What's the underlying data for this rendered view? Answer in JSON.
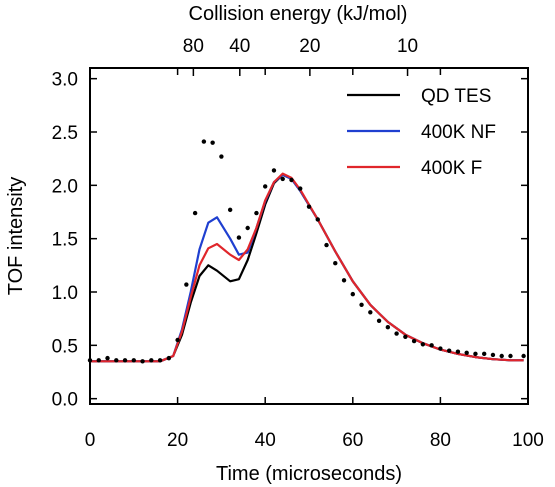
{
  "chart_data": {
    "type": "line",
    "xlabel": "Time (microseconds)",
    "ylabel": "TOF intensity",
    "top_axis_label": "Collision energy (kJ/mol)",
    "xlim": [
      0,
      100
    ],
    "ylim": [
      -0.05,
      3.1
    ],
    "x_ticks": [
      0,
      20,
      40,
      60,
      80,
      100
    ],
    "y_ticks": [
      0.0,
      0.5,
      1.0,
      1.5,
      2.0,
      2.5,
      3.0
    ],
    "y_tick_labels": [
      "0.0",
      "0.5",
      "1.0",
      "1.5",
      "2.0",
      "2.5",
      "3.0"
    ],
    "top_ticks": [
      {
        "label": "80",
        "time": 23.6
      },
      {
        "label": "40",
        "time": 34.2
      },
      {
        "label": "20",
        "time": 50.2
      },
      {
        "label": "10",
        "time": 72.5
      }
    ],
    "legend_position": "top-right",
    "series": [
      {
        "name": "QD TES",
        "color": "#000000",
        "points": [
          [
            0,
            0.35
          ],
          [
            16,
            0.35
          ],
          [
            19,
            0.4
          ],
          [
            21,
            0.6
          ],
          [
            23,
            0.9
          ],
          [
            25,
            1.15
          ],
          [
            27,
            1.25
          ],
          [
            29,
            1.2
          ],
          [
            32,
            1.1
          ],
          [
            34,
            1.12
          ],
          [
            36,
            1.3
          ],
          [
            38,
            1.55
          ],
          [
            40,
            1.82
          ],
          [
            42,
            2.02
          ],
          [
            44,
            2.1
          ],
          [
            46,
            2.06
          ],
          [
            48,
            1.95
          ],
          [
            52,
            1.68
          ],
          [
            56,
            1.38
          ],
          [
            60,
            1.1
          ],
          [
            64,
            0.88
          ],
          [
            68,
            0.72
          ],
          [
            72,
            0.6
          ],
          [
            76,
            0.52
          ],
          [
            80,
            0.46
          ],
          [
            84,
            0.42
          ],
          [
            88,
            0.39
          ],
          [
            92,
            0.37
          ],
          [
            96,
            0.36
          ],
          [
            99,
            0.36
          ]
        ]
      },
      {
        "name": "400K NF",
        "color": "#1f3fd0",
        "points": [
          [
            0,
            0.35
          ],
          [
            16,
            0.35
          ],
          [
            19,
            0.4
          ],
          [
            21,
            0.65
          ],
          [
            23,
            1.0
          ],
          [
            25,
            1.4
          ],
          [
            27,
            1.65
          ],
          [
            29,
            1.7
          ],
          [
            32,
            1.5
          ],
          [
            34,
            1.35
          ],
          [
            36,
            1.37
          ],
          [
            38,
            1.6
          ],
          [
            40,
            1.85
          ],
          [
            42,
            2.03
          ],
          [
            44,
            2.1
          ],
          [
            46,
            2.06
          ],
          [
            48,
            1.95
          ],
          [
            52,
            1.68
          ],
          [
            56,
            1.38
          ],
          [
            60,
            1.1
          ],
          [
            64,
            0.88
          ],
          [
            68,
            0.72
          ],
          [
            72,
            0.6
          ],
          [
            76,
            0.52
          ],
          [
            80,
            0.46
          ],
          [
            84,
            0.42
          ],
          [
            88,
            0.39
          ],
          [
            92,
            0.37
          ],
          [
            96,
            0.36
          ],
          [
            99,
            0.36
          ]
        ]
      },
      {
        "name": "400K F",
        "color": "#e0262b",
        "points": [
          [
            0,
            0.35
          ],
          [
            16,
            0.35
          ],
          [
            19,
            0.4
          ],
          [
            21,
            0.63
          ],
          [
            23,
            0.95
          ],
          [
            25,
            1.25
          ],
          [
            27,
            1.41
          ],
          [
            29,
            1.45
          ],
          [
            32,
            1.35
          ],
          [
            34,
            1.3
          ],
          [
            36,
            1.4
          ],
          [
            38,
            1.6
          ],
          [
            40,
            1.86
          ],
          [
            42,
            2.03
          ],
          [
            44,
            2.11
          ],
          [
            46,
            2.07
          ],
          [
            48,
            1.96
          ],
          [
            52,
            1.68
          ],
          [
            56,
            1.38
          ],
          [
            60,
            1.1
          ],
          [
            64,
            0.88
          ],
          [
            68,
            0.72
          ],
          [
            72,
            0.6
          ],
          [
            76,
            0.52
          ],
          [
            80,
            0.46
          ],
          [
            84,
            0.42
          ],
          [
            88,
            0.39
          ],
          [
            92,
            0.37
          ],
          [
            96,
            0.36
          ],
          [
            99,
            0.36
          ]
        ]
      }
    ],
    "data_points": {
      "style": "dots",
      "color": "#000000",
      "points": [
        [
          0,
          0.36
        ],
        [
          2,
          0.36
        ],
        [
          4,
          0.38
        ],
        [
          6,
          0.36
        ],
        [
          8,
          0.36
        ],
        [
          10,
          0.36
        ],
        [
          12,
          0.35
        ],
        [
          14,
          0.36
        ],
        [
          16,
          0.36
        ],
        [
          18,
          0.38
        ],
        [
          20,
          0.55
        ],
        [
          22,
          1.07
        ],
        [
          24,
          1.74
        ],
        [
          26,
          2.41
        ],
        [
          28,
          2.4
        ],
        [
          30,
          2.27
        ],
        [
          32,
          1.77
        ],
        [
          34,
          1.51
        ],
        [
          36,
          1.6
        ],
        [
          38,
          1.74
        ],
        [
          40,
          1.99
        ],
        [
          42,
          2.14
        ],
        [
          44,
          2.06
        ],
        [
          46,
          2.05
        ],
        [
          48,
          1.97
        ],
        [
          50,
          1.8
        ],
        [
          52,
          1.68
        ],
        [
          54,
          1.44
        ],
        [
          56,
          1.27
        ],
        [
          58,
          1.11
        ],
        [
          60,
          0.98
        ],
        [
          62,
          0.88
        ],
        [
          64,
          0.81
        ],
        [
          66,
          0.73
        ],
        [
          68,
          0.67
        ],
        [
          70,
          0.61
        ],
        [
          72,
          0.58
        ],
        [
          74,
          0.54
        ],
        [
          76,
          0.51
        ],
        [
          78,
          0.5
        ],
        [
          80,
          0.47
        ],
        [
          82,
          0.45
        ],
        [
          84,
          0.44
        ],
        [
          86,
          0.43
        ],
        [
          88,
          0.42
        ],
        [
          90,
          0.42
        ],
        [
          92,
          0.41
        ],
        [
          94,
          0.4
        ],
        [
          96,
          0.4
        ],
        [
          99,
          0.4
        ]
      ]
    }
  }
}
